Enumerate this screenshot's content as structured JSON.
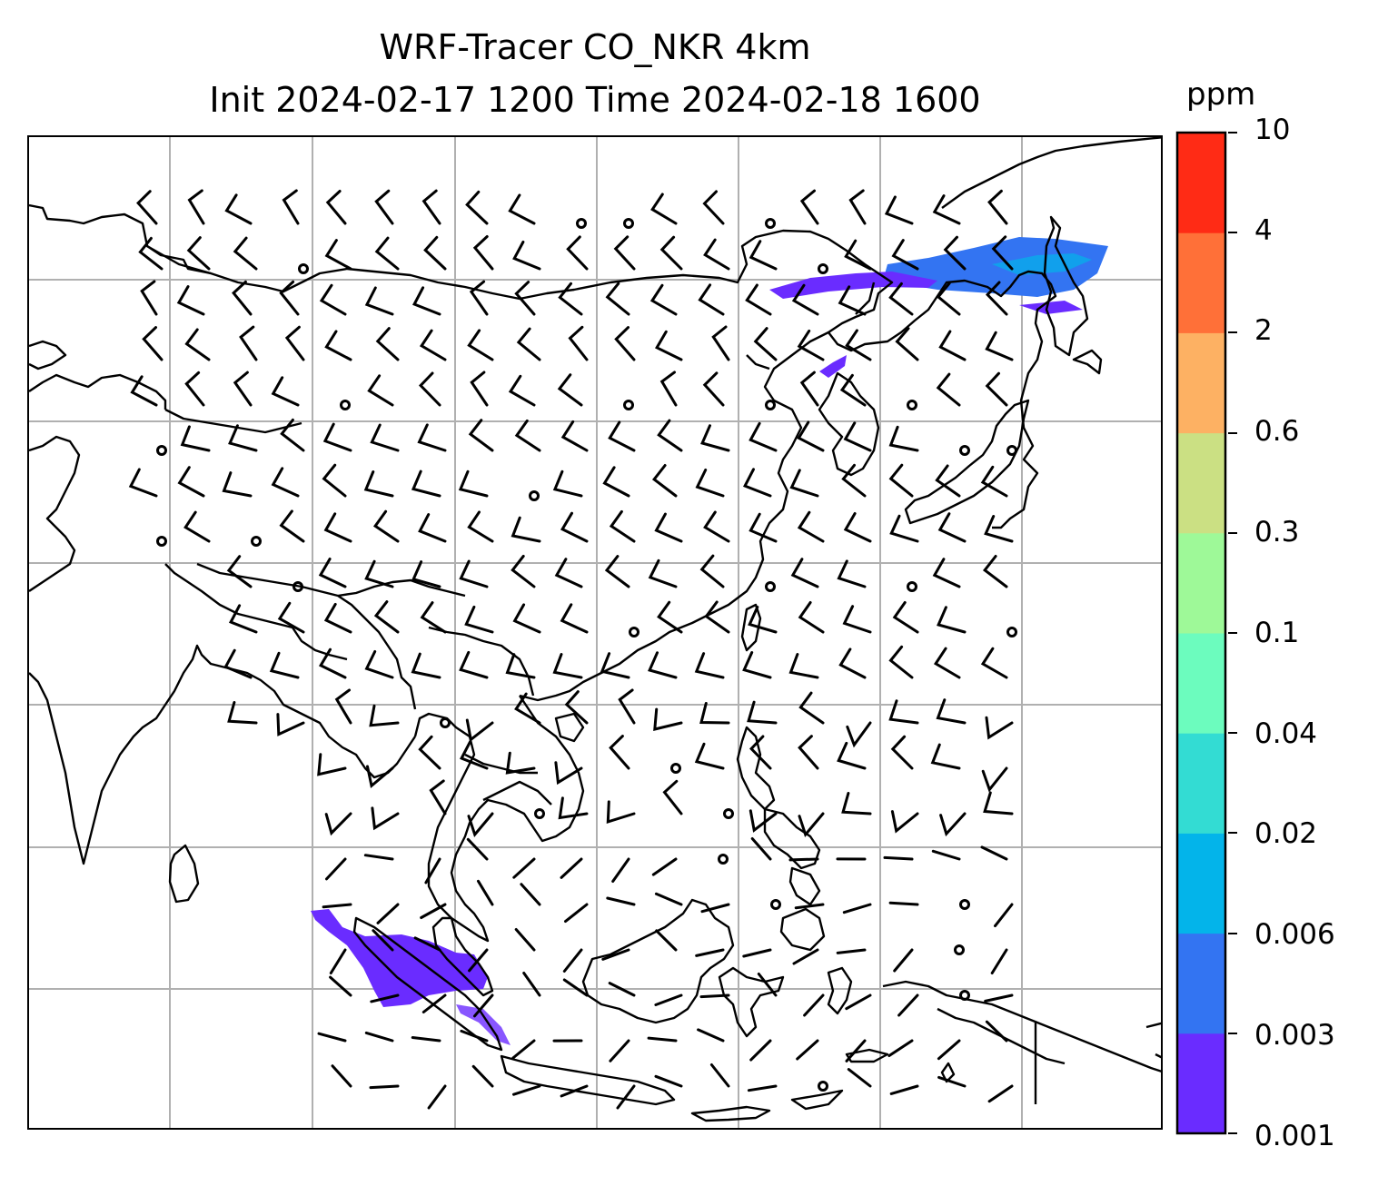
{
  "title": {
    "line1": "WRF-Tracer CO_NKR 4km",
    "line2": "Init 2024-02-17 1200 Time 2024-02-18 1600"
  },
  "colorbar": {
    "unit": "ppm",
    "ticks": [
      "0.001",
      "0.003",
      "0.006",
      "0.02",
      "0.04",
      "0.1",
      "0.3",
      "0.6",
      "2",
      "4",
      "10"
    ],
    "colors": [
      "#6a2cff",
      "#3374f2",
      "#03b4ea",
      "#33dcd3",
      "#6cfcbe",
      "#9ef998",
      "#cbe083",
      "#fdb163",
      "#ff7038",
      "#ff2b15"
    ]
  },
  "map": {
    "gridlines": true,
    "wind_barbs": true,
    "coastlines": true,
    "tracer_fields": [
      {
        "region": "north-east band",
        "level_color": "#3374f2"
      },
      {
        "region": "south-west patch",
        "level_color": "#6a2cff"
      }
    ]
  }
}
